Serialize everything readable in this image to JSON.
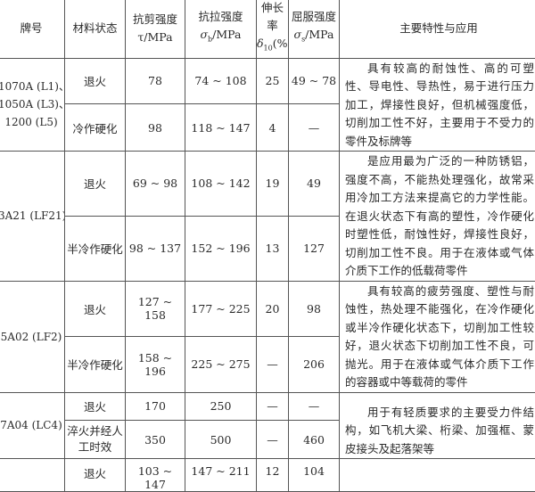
{
  "headers": {
    "grade": "牌号",
    "state": "材料状态",
    "shear": "抗剪强度",
    "shear_unit": "τ/MPa",
    "tensile": "抗拉强度",
    "tensile_sym": "σ",
    "tensile_sub": "b",
    "tensile_unit": "/MPa",
    "elong": "伸长率",
    "elong_sym": "δ",
    "elong_sub": "10",
    "elong_unit": "(%)",
    "yield": "屈服强度",
    "yield_sym": "σ",
    "yield_sub": "s",
    "yield_unit": "/MPa",
    "application": "主要特性与应用"
  },
  "groups": [
    {
      "grade_lines": [
        "1070A (L1)、",
        "1050A (L3)、",
        "1200 (L5)"
      ],
      "rows": [
        {
          "state": "退火",
          "shear": "78",
          "tensile": "74 ~ 108",
          "elong": "25",
          "yield": "49 ~ 78"
        },
        {
          "state": "冷作硬化",
          "shear": "98",
          "tensile": "118 ~ 147",
          "elong": "4",
          "yield": "—"
        }
      ],
      "application": "具有较高的耐蚀性、高的可塑性、导电性、导热性，易于进行压力加工，焊接性良好，但机械强度低，切削加工性不好，主要用于不受力的零件及标牌等"
    },
    {
      "grade_lines": [
        "3A21 (LF21)"
      ],
      "rows": [
        {
          "state": "退火",
          "shear": "69 ~ 98",
          "tensile": "108 ~ 142",
          "elong": "19",
          "yield": "49"
        },
        {
          "state": "半冷作硬化",
          "shear": "98 ~ 137",
          "tensile": "152 ~ 196",
          "elong": "13",
          "yield": "127"
        }
      ],
      "application": "是应用最为广泛的一种防锈铝，强度不高，不能热处理强化，故常采用冷加工方法来提高它的力学性能。在退火状态下有高的塑性，冷作硬化时塑性低，耐蚀性好，焊接性良好，切削加工性不良。用于在液体或气体介质下工作的低载荷零件"
    },
    {
      "grade_lines": [
        "5A02 (LF2)"
      ],
      "rows": [
        {
          "state": "退火",
          "shear": "127 ~ 158",
          "tensile": "177 ~ 225",
          "elong": "20",
          "yield": "98"
        },
        {
          "state": "半冷作硬化",
          "shear": "158 ~ 196",
          "tensile": "225 ~ 275",
          "elong": "—",
          "yield": "206"
        }
      ],
      "application": "具有较高的疲劳强度、塑性与耐蚀性，热处理不能强化，在冷作硬化或半冷作硬化状态下，切削加工性较好，退火状态下切削加工性不良，可抛光。用于在液体或气体介质下工作的容器或中等载荷的零件"
    },
    {
      "grade_lines": [
        "7A04 (LC4)"
      ],
      "rows": [
        {
          "state": "退火",
          "shear": "170",
          "tensile": "250",
          "elong": "—",
          "yield": "—"
        },
        {
          "state": "淬火并经人工时效",
          "shear": "350",
          "tensile": "500",
          "elong": "—",
          "yield": "460"
        }
      ],
      "application": "用于有轻质要求的主要受力件结构，如飞机大梁、桁梁、加强框、蒙皮接头及起落架等"
    }
  ],
  "partial_row": {
    "state": "退火",
    "shear": "103 ~ 147",
    "tensile": "147 ~ 211",
    "elong": "12",
    "yield": "104"
  }
}
